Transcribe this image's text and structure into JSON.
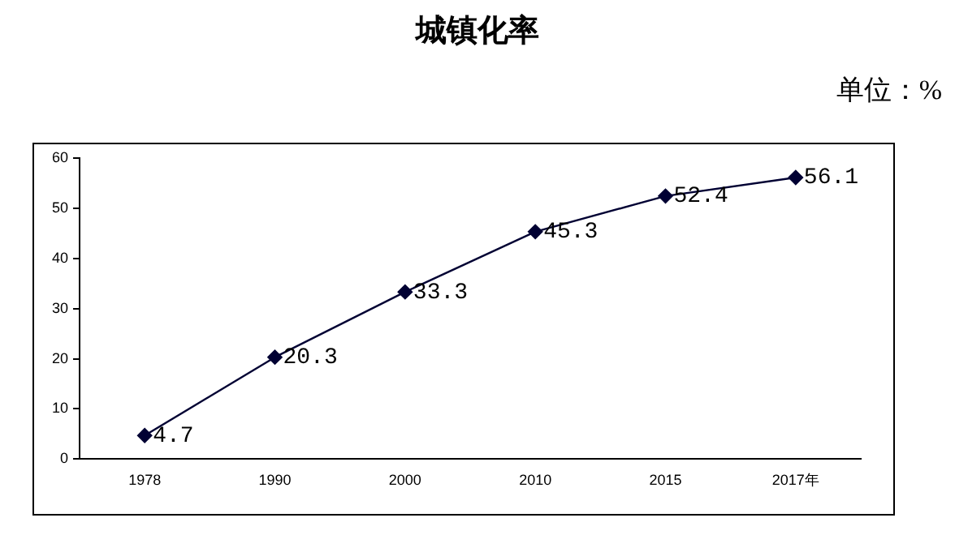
{
  "chart_data": {
    "type": "line",
    "title": "城镇化率",
    "annotations": [
      "单位：%"
    ],
    "categories": [
      "1978",
      "1990",
      "2000",
      "2010",
      "2015",
      "2017年"
    ],
    "series": [
      {
        "color": "#000033",
        "values": [
          4.7,
          20.3,
          33.3,
          45.3,
          52.4,
          56.1
        ]
      }
    ],
    "ylim": [
      0,
      60
    ],
    "yticks": [
      0,
      10,
      20,
      30,
      40,
      50,
      60
    ],
    "grid": false,
    "legend": false,
    "marker": "diamond",
    "line_style": "solid",
    "data_labels": true
  }
}
